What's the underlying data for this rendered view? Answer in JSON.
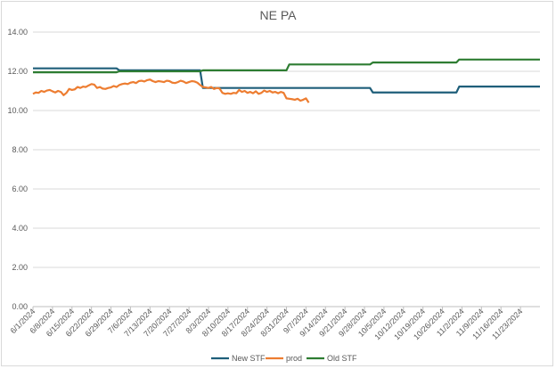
{
  "chart_data": {
    "type": "line",
    "title": "NE PA",
    "xlabel": "",
    "ylabel": "",
    "ylim": [
      0,
      14
    ],
    "y_ticks": [
      "0.00",
      "2.00",
      "4.00",
      "6.00",
      "8.00",
      "10.00",
      "12.00",
      "14.00"
    ],
    "x_tick_labels": [
      "6/1/2024",
      "6/8/2024",
      "6/15/2024",
      "6/22/2024",
      "6/29/2024",
      "7/6/2024",
      "7/13/2024",
      "7/20/2024",
      "7/27/2024",
      "8/3/2024",
      "8/10/2024",
      "8/17/2024",
      "8/24/2024",
      "8/31/2024",
      "9/7/2024",
      "9/14/2024",
      "9/21/2024",
      "9/28/2024",
      "10/5/2024",
      "10/12/2024",
      "10/19/2024",
      "10/26/2024",
      "11/2/2024",
      "11/9/2024",
      "11/16/2024",
      "11/23/2024"
    ],
    "x_range": [
      "6/1/2024",
      "11/30/2024"
    ],
    "grid": "horizontal",
    "legend_position": "bottom",
    "series": [
      {
        "name": "New STF",
        "color": "#1f5f7a",
        "points": [
          [
            "6/1/2024",
            12.15
          ],
          [
            "7/1/2024",
            12.15
          ],
          [
            "7/2/2024",
            12.05
          ],
          [
            "7/31/2024",
            12.05
          ],
          [
            "8/1/2024",
            11.15
          ],
          [
            "9/30/2024",
            11.15
          ],
          [
            "10/1/2024",
            10.92
          ],
          [
            "10/31/2024",
            10.92
          ],
          [
            "11/1/2024",
            11.22
          ],
          [
            "11/30/2024",
            11.22
          ]
        ]
      },
      {
        "name": "prod",
        "color": "#ed7d31",
        "points": [
          [
            "6/1/2024",
            10.85
          ],
          [
            "6/2/2024",
            10.92
          ],
          [
            "6/3/2024",
            10.9
          ],
          [
            "6/4/2024",
            11.0
          ],
          [
            "6/5/2024",
            10.95
          ],
          [
            "6/6/2024",
            11.02
          ],
          [
            "6/7/2024",
            11.05
          ],
          [
            "6/8/2024",
            10.98
          ],
          [
            "6/9/2024",
            10.92
          ],
          [
            "6/10/2024",
            11.0
          ],
          [
            "6/11/2024",
            10.95
          ],
          [
            "6/12/2024",
            10.78
          ],
          [
            "6/13/2024",
            10.9
          ],
          [
            "6/14/2024",
            11.1
          ],
          [
            "6/15/2024",
            11.05
          ],
          [
            "6/16/2024",
            11.08
          ],
          [
            "6/17/2024",
            11.2
          ],
          [
            "6/18/2024",
            11.15
          ],
          [
            "6/19/2024",
            11.22
          ],
          [
            "6/20/2024",
            11.2
          ],
          [
            "6/21/2024",
            11.28
          ],
          [
            "6/22/2024",
            11.35
          ],
          [
            "6/23/2024",
            11.32
          ],
          [
            "6/24/2024",
            11.15
          ],
          [
            "6/25/2024",
            11.2
          ],
          [
            "6/26/2024",
            11.12
          ],
          [
            "6/27/2024",
            11.1
          ],
          [
            "6/28/2024",
            11.15
          ],
          [
            "6/29/2024",
            11.18
          ],
          [
            "6/30/2024",
            11.25
          ],
          [
            "7/1/2024",
            11.2
          ],
          [
            "7/2/2024",
            11.3
          ],
          [
            "7/3/2024",
            11.35
          ],
          [
            "7/4/2024",
            11.38
          ],
          [
            "7/5/2024",
            11.35
          ],
          [
            "7/6/2024",
            11.42
          ],
          [
            "7/7/2024",
            11.45
          ],
          [
            "7/8/2024",
            11.4
          ],
          [
            "7/9/2024",
            11.5
          ],
          [
            "7/10/2024",
            11.52
          ],
          [
            "7/11/2024",
            11.48
          ],
          [
            "7/12/2024",
            11.55
          ],
          [
            "7/13/2024",
            11.58
          ],
          [
            "7/14/2024",
            11.5
          ],
          [
            "7/15/2024",
            11.45
          ],
          [
            "7/16/2024",
            11.5
          ],
          [
            "7/17/2024",
            11.48
          ],
          [
            "7/18/2024",
            11.45
          ],
          [
            "7/19/2024",
            11.52
          ],
          [
            "7/20/2024",
            11.5
          ],
          [
            "7/21/2024",
            11.42
          ],
          [
            "7/22/2024",
            11.4
          ],
          [
            "7/23/2024",
            11.45
          ],
          [
            "7/24/2024",
            11.52
          ],
          [
            "7/25/2024",
            11.48
          ],
          [
            "7/26/2024",
            11.4
          ],
          [
            "7/27/2024",
            11.45
          ],
          [
            "7/28/2024",
            11.5
          ],
          [
            "7/29/2024",
            11.48
          ],
          [
            "7/30/2024",
            11.42
          ],
          [
            "7/31/2024",
            11.3
          ],
          [
            "8/1/2024",
            11.2
          ],
          [
            "8/2/2024",
            11.18
          ],
          [
            "8/3/2024",
            11.15
          ],
          [
            "8/4/2024",
            11.2
          ],
          [
            "8/5/2024",
            11.1
          ],
          [
            "8/6/2024",
            11.15
          ],
          [
            "8/7/2024",
            11.12
          ],
          [
            "8/8/2024",
            10.9
          ],
          [
            "8/9/2024",
            10.85
          ],
          [
            "8/10/2024",
            10.88
          ],
          [
            "8/11/2024",
            10.85
          ],
          [
            "8/12/2024",
            10.9
          ],
          [
            "8/13/2024",
            10.88
          ],
          [
            "8/14/2024",
            11.05
          ],
          [
            "8/15/2024",
            10.95
          ],
          [
            "8/16/2024",
            11.0
          ],
          [
            "8/17/2024",
            10.9
          ],
          [
            "8/18/2024",
            10.95
          ],
          [
            "8/19/2024",
            10.88
          ],
          [
            "8/20/2024",
            10.98
          ],
          [
            "8/21/2024",
            10.85
          ],
          [
            "8/22/2024",
            10.9
          ],
          [
            "8/23/2024",
            11.02
          ],
          [
            "8/24/2024",
            10.95
          ],
          [
            "8/25/2024",
            11.0
          ],
          [
            "8/26/2024",
            10.92
          ],
          [
            "8/27/2024",
            10.95
          ],
          [
            "8/28/2024",
            10.88
          ],
          [
            "8/29/2024",
            10.95
          ],
          [
            "8/30/2024",
            10.9
          ],
          [
            "8/31/2024",
            10.62
          ],
          [
            "9/1/2024",
            10.6
          ],
          [
            "9/2/2024",
            10.58
          ],
          [
            "9/3/2024",
            10.55
          ],
          [
            "9/4/2024",
            10.6
          ],
          [
            "9/5/2024",
            10.5
          ],
          [
            "9/6/2024",
            10.55
          ],
          [
            "9/7/2024",
            10.62
          ],
          [
            "9/8/2024",
            10.4
          ]
        ]
      },
      {
        "name": "Old STF",
        "color": "#2e7d32",
        "points": [
          [
            "6/1/2024",
            11.95
          ],
          [
            "7/1/2024",
            11.95
          ],
          [
            "7/2/2024",
            12.0
          ],
          [
            "7/31/2024",
            12.0
          ],
          [
            "8/1/2024",
            12.05
          ],
          [
            "8/31/2024",
            12.05
          ],
          [
            "9/1/2024",
            12.35
          ],
          [
            "9/30/2024",
            12.35
          ],
          [
            "10/1/2024",
            12.45
          ],
          [
            "10/31/2024",
            12.45
          ],
          [
            "11/1/2024",
            12.6
          ],
          [
            "11/30/2024",
            12.6
          ]
        ]
      }
    ]
  }
}
